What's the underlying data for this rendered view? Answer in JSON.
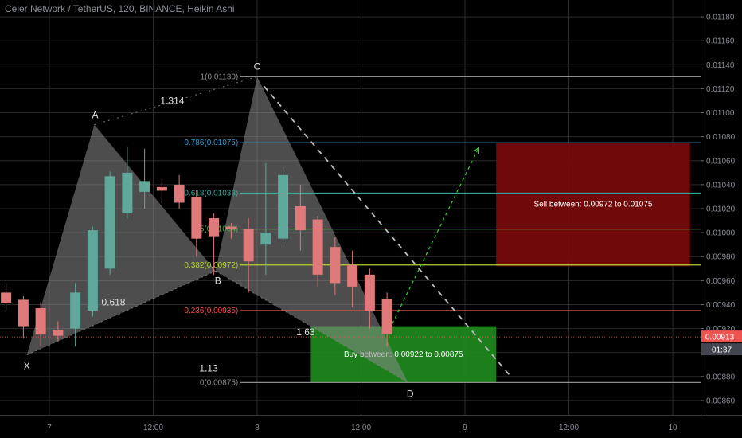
{
  "title": "Celer Network / TetherUS, 120, BINANCE, Heikin Ashi",
  "colors": {
    "background": "#000000",
    "grid": "#2a2a2a",
    "bull": "#5fa89a",
    "bear": "#e07a7a",
    "pattern_fill": "#8c8c8c",
    "buy_zone": "#1e8a1e",
    "sell_zone": "#7a0a0a",
    "price_tag": "#ef5350",
    "countdown_tag": "#434651"
  },
  "chart_data": {
    "type": "candlestick",
    "style": "Heikin Ashi",
    "symbol": "Celer Network / TetherUS",
    "interval": "120",
    "exchange": "BINANCE",
    "ylim": [
      0.00848,
      0.01194
    ],
    "y_ticks": [
      "0.01180",
      "0.01160",
      "0.01140",
      "0.01120",
      "0.01100",
      "0.01080",
      "0.01060",
      "0.01040",
      "0.01020",
      "0.01000",
      "0.00980",
      "0.00960",
      "0.00940",
      "0.00920",
      "0.00900",
      "0.00880",
      "0.00860"
    ],
    "x_ticks": [
      {
        "label": "7",
        "index": 3
      },
      {
        "label": "12:00",
        "index": 9
      },
      {
        "label": "8",
        "index": 15
      },
      {
        "label": "12:00",
        "index": 21
      },
      {
        "label": "9",
        "index": 27
      },
      {
        "label": "12:00",
        "index": 33
      },
      {
        "label": "10",
        "index": 39
      }
    ],
    "candles": [
      {
        "o": 0.0095,
        "h": 0.00958,
        "l": 0.00935,
        "c": 0.00941
      },
      {
        "o": 0.00944,
        "h": 0.00947,
        "l": 0.00912,
        "c": 0.00922
      },
      {
        "o": 0.00937,
        "h": 0.00942,
        "l": 0.00905,
        "c": 0.00915
      },
      {
        "o": 0.00919,
        "h": 0.00926,
        "l": 0.0091,
        "c": 0.00914
      },
      {
        "o": 0.0092,
        "h": 0.00958,
        "l": 0.00905,
        "c": 0.0095
      },
      {
        "o": 0.00935,
        "h": 0.01005,
        "l": 0.0093,
        "c": 0.01002
      },
      {
        "o": 0.0097,
        "h": 0.01051,
        "l": 0.00965,
        "c": 0.01047
      },
      {
        "o": 0.01016,
        "h": 0.01072,
        "l": 0.01012,
        "c": 0.0105
      },
      {
        "o": 0.01034,
        "h": 0.0107,
        "l": 0.0102,
        "c": 0.01043
      },
      {
        "o": 0.01038,
        "h": 0.01045,
        "l": 0.01025,
        "c": 0.01035
      },
      {
        "o": 0.0104,
        "h": 0.01048,
        "l": 0.0102,
        "c": 0.01025
      },
      {
        "o": 0.0103,
        "h": 0.01035,
        "l": 0.0098,
        "c": 0.00995
      },
      {
        "o": 0.01012,
        "h": 0.01016,
        "l": 0.00965,
        "c": 0.00997
      },
      {
        "o": 0.01005,
        "h": 0.01008,
        "l": 0.00995,
        "c": 0.01003
      },
      {
        "o": 0.01003,
        "h": 0.01012,
        "l": 0.0095,
        "c": 0.00976
      },
      {
        "o": 0.0099,
        "h": 0.01058,
        "l": 0.00965,
        "c": 0.01
      },
      {
        "o": 0.00995,
        "h": 0.01055,
        "l": 0.00988,
        "c": 0.01048
      },
      {
        "o": 0.01022,
        "h": 0.0104,
        "l": 0.00985,
        "c": 0.01002
      },
      {
        "o": 0.01011,
        "h": 0.01014,
        "l": 0.00955,
        "c": 0.00965
      },
      {
        "o": 0.00988,
        "h": 0.00996,
        "l": 0.00948,
        "c": 0.00958
      },
      {
        "o": 0.00973,
        "h": 0.00985,
        "l": 0.00938,
        "c": 0.00955
      },
      {
        "o": 0.00965,
        "h": 0.0097,
        "l": 0.0092,
        "c": 0.00935
      },
      {
        "o": 0.00945,
        "h": 0.0095,
        "l": 0.00905,
        "c": 0.00915
      }
    ],
    "harmonic_pattern": {
      "points": [
        {
          "label": "X",
          "index": 1.7,
          "price": 0.00898
        },
        {
          "label": "A",
          "index": 5.6,
          "price": 0.0109
        },
        {
          "label": "B",
          "index": 12.6,
          "price": 0.00968
        },
        {
          "label": "C",
          "index": 15.0,
          "price": 0.0113
        },
        {
          "label": "D",
          "index": 23.7,
          "price": 0.00875
        }
      ],
      "ratios": [
        {
          "text": "1.314",
          "index": 10.1,
          "price": 0.0111
        },
        {
          "text": "0.618",
          "index": 6.7,
          "price": 0.00942
        },
        {
          "text": "1.63",
          "index": 17.8,
          "price": 0.00917
        },
        {
          "text": "1.13",
          "index": 12.2,
          "price": 0.00887
        }
      ]
    },
    "fib_levels": [
      {
        "label": "1(0.01130)",
        "price": 0.0113,
        "color": "#8c8c8c"
      },
      {
        "label": "0.786(0.01075)",
        "price": 0.01075,
        "color": "#2f9ad6"
      },
      {
        "label": "0.618(0.01033)",
        "price": 0.01033,
        "color": "#38a89d"
      },
      {
        "label": "0.5(0.01004)",
        "price": 0.01003,
        "color": "#4caf50"
      },
      {
        "label": "0.382(0.00972)",
        "price": 0.00973,
        "color": "#b5d334"
      },
      {
        "label": "0.236(0.00935)",
        "price": 0.00935,
        "color": "#ef5350"
      },
      {
        "label": "0(0.00875)",
        "price": 0.00875,
        "color": "#8c8c8c"
      }
    ],
    "buy_zone": {
      "text": "Buy between: 0.00922 to 0.00875",
      "top": 0.00922,
      "bottom": 0.00875,
      "from_index": 18.1,
      "to_index": 28.8
    },
    "sell_zone": {
      "text": "Sell between: 0.00972 to 0.01075",
      "top": 0.01075,
      "bottom": 0.00972,
      "from_index": 28.8,
      "to_index": 40.0
    },
    "projection_up": {
      "from_index": 22.8,
      "from_price": 0.00924,
      "to_index": 27.8,
      "to_price": 0.01071
    },
    "projection_down": {
      "from_index": 15.4,
      "from_price": 0.01122,
      "to_index": 29.7,
      "to_price": 0.00879
    },
    "last_price": {
      "value": "0.00913",
      "countdown": "01:37",
      "price": 0.00913
    }
  }
}
